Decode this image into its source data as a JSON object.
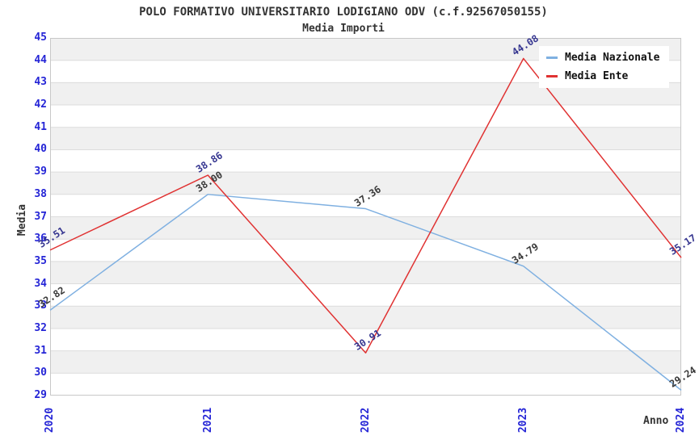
{
  "chart_data": {
    "type": "line",
    "title": "POLO FORMATIVO UNIVERSITARIO LODIGIANO ODV (c.f.92567050155)",
    "subtitle": "Media Importi",
    "x": [
      "2020",
      "2021",
      "2022",
      "2023",
      "2024"
    ],
    "xlabel": "Anno",
    "ylabel": "Media",
    "ylim": [
      29,
      45
    ],
    "ytick_step": 1,
    "grid": "horizontal-bands",
    "legend_position": "top-right",
    "band_colors": [
      "#f0f0f0",
      "#ffffff"
    ],
    "gridline_color": "#dcdcdc",
    "border_color": "#c8c8c8",
    "tick_label_color": "#2424d6",
    "series": [
      {
        "name": "Media Nazionale",
        "color": "#7fb0e1",
        "label_color": "#3a3a3a",
        "values": [
          32.82,
          38.0,
          37.36,
          34.79,
          29.24
        ]
      },
      {
        "name": "Media Ente",
        "color": "#e03232",
        "label_color": "#363690",
        "values": [
          35.51,
          38.86,
          30.91,
          44.08,
          35.17
        ]
      }
    ]
  }
}
